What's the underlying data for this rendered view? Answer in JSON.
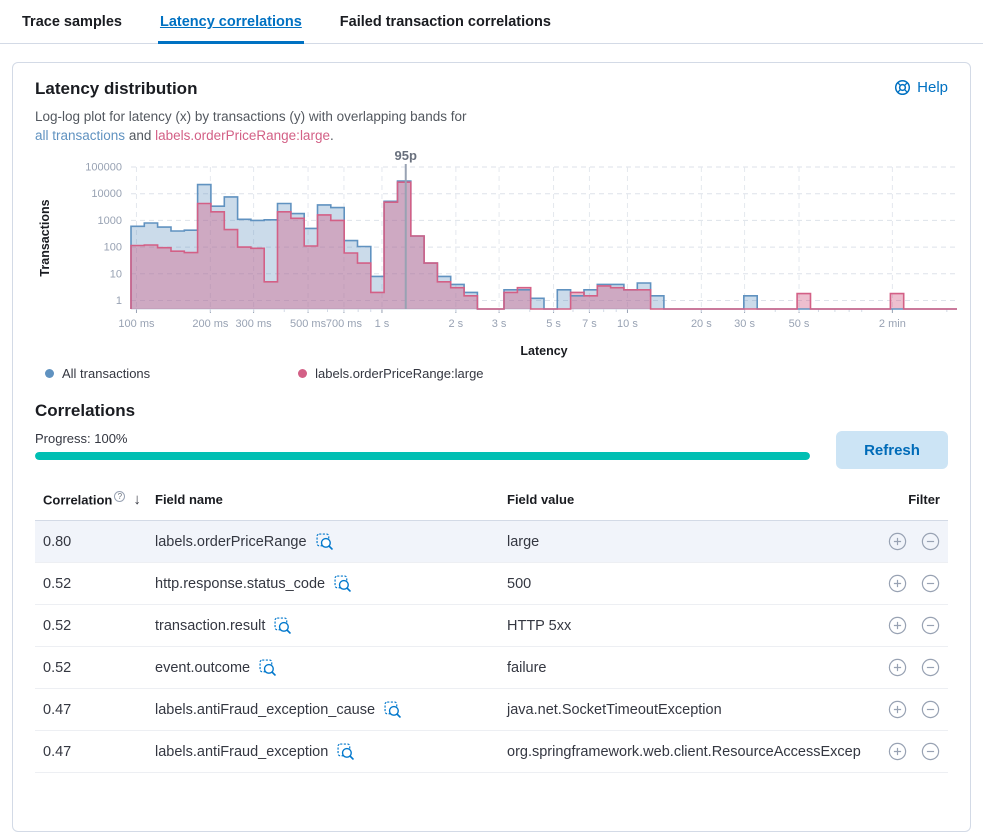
{
  "tabs": [
    {
      "label": "Trace samples",
      "active": false
    },
    {
      "label": "Latency correlations",
      "active": true
    },
    {
      "label": "Failed transaction correlations",
      "active": false
    }
  ],
  "panel": {
    "title": "Latency distribution",
    "help_label": "Help",
    "description": {
      "line": "Log-log plot for latency (x) by transactions (y) with overlapping bands for",
      "link_all": "all transactions",
      "conjunction": "and",
      "link_field": "labels.orderPriceRange:large",
      "suffix": "."
    },
    "legend": [
      {
        "label": "All transactions",
        "color": "#6092C0"
      },
      {
        "label": "labels.orderPriceRange:large",
        "color": "#D36086"
      }
    ]
  },
  "chart_data": {
    "type": "area",
    "subtype": "log-log step histogram with overlapping bands",
    "title": "Latency distribution",
    "xlabel": "Latency",
    "ylabel": "Transactions",
    "x_scale": "log",
    "y_scale": "log",
    "x_domain_s": [
      0.095,
      220
    ],
    "y_ticks": [
      1,
      10,
      100,
      1000,
      10000,
      100000
    ],
    "y_tick_labels": [
      "1",
      "10",
      "100",
      "1000",
      "10000",
      "100000"
    ],
    "x_ticks": [
      {
        "t": 0.1,
        "label": "100 ms"
      },
      {
        "t": 0.2,
        "label": "200 ms"
      },
      {
        "t": 0.3,
        "label": "300 ms"
      },
      {
        "t": 0.5,
        "label": "500 ms"
      },
      {
        "t": 0.7,
        "label": "700 ms"
      },
      {
        "t": 1,
        "label": "1 s"
      },
      {
        "t": 2,
        "label": "2 s"
      },
      {
        "t": 3,
        "label": "3 s"
      },
      {
        "t": 5,
        "label": "5 s"
      },
      {
        "t": 7,
        "label": "7 s"
      },
      {
        "t": 10,
        "label": "10 s"
      },
      {
        "t": 20,
        "label": "20 s"
      },
      {
        "t": 30,
        "label": "30 s"
      },
      {
        "t": 50,
        "label": "50 s"
      },
      {
        "t": 120,
        "label": "2 min"
      }
    ],
    "marker": {
      "label": "95p",
      "time_s": 1.25
    },
    "grid": true,
    "legend_position": "bottom",
    "series": [
      {
        "name": "All transactions",
        "color": "#6092C0",
        "values": [
          600,
          800,
          560,
          400,
          430,
          22000,
          3400,
          7600,
          1100,
          1000,
          1050,
          4300,
          1800,
          500,
          3800,
          3000,
          175,
          105,
          8,
          5200,
          30000,
          260,
          25,
          8,
          4,
          2,
          0,
          0,
          2.5,
          2.5,
          1.2,
          0,
          2.5,
          1.5,
          2.5,
          4,
          4,
          2.5,
          4.5,
          1.5,
          0,
          0,
          0,
          0,
          0,
          0,
          1.5,
          0,
          0,
          0,
          0,
          0,
          0,
          0,
          0,
          0,
          0,
          0,
          0,
          0,
          0,
          0
        ]
      },
      {
        "name": "labels.orderPriceRange:large",
        "color": "#D36086",
        "values": [
          115,
          120,
          95,
          70,
          62,
          4300,
          2100,
          450,
          100,
          90,
          5,
          2100,
          1200,
          110,
          1600,
          1000,
          60,
          25,
          2,
          4800,
          27000,
          260,
          25,
          5,
          3,
          1.5,
          0,
          0,
          2,
          3,
          0,
          0,
          0,
          2,
          1.5,
          3.5,
          3,
          2.5,
          2.5,
          0,
          0,
          0,
          0,
          0,
          0,
          0,
          0,
          0,
          0,
          0,
          1.8,
          0,
          0,
          0,
          0,
          0,
          0,
          1.8,
          0,
          0,
          0,
          0
        ]
      }
    ]
  },
  "correlations": {
    "heading": "Correlations",
    "progress_label": "Progress: 100%",
    "progress_percent": 100,
    "progress_color": "#00BFB3",
    "refresh_label": "Refresh",
    "table": {
      "columns": [
        "Correlation",
        "Field name",
        "Field value",
        "Filter"
      ],
      "info_icon": "?",
      "sort_icon": "↓",
      "rows": [
        {
          "correlation": "0.80",
          "field_name": "labels.orderPriceRange",
          "field_value": "large",
          "highlighted": true
        },
        {
          "correlation": "0.52",
          "field_name": "http.response.status_code",
          "field_value": "500",
          "highlighted": false
        },
        {
          "correlation": "0.52",
          "field_name": "transaction.result",
          "field_value": "HTTP 5xx",
          "highlighted": false
        },
        {
          "correlation": "0.52",
          "field_name": "event.outcome",
          "field_value": "failure",
          "highlighted": false
        },
        {
          "correlation": "0.47",
          "field_name": "labels.antiFraud_exception_cause",
          "field_value": "java.net.SocketTimeoutException",
          "highlighted": false
        },
        {
          "correlation": "0.47",
          "field_name": "labels.antiFraud_exception",
          "field_value": "org.springframework.web.client.ResourceAccessExcep",
          "highlighted": false
        }
      ]
    }
  },
  "colors": {
    "accent_blue": "#0071C2",
    "series_blue": "#6092C0",
    "series_pink": "#D36086",
    "progress_teal": "#00BFB3",
    "border": "#D3DAE6",
    "icon_gray": "#98A2B3"
  }
}
